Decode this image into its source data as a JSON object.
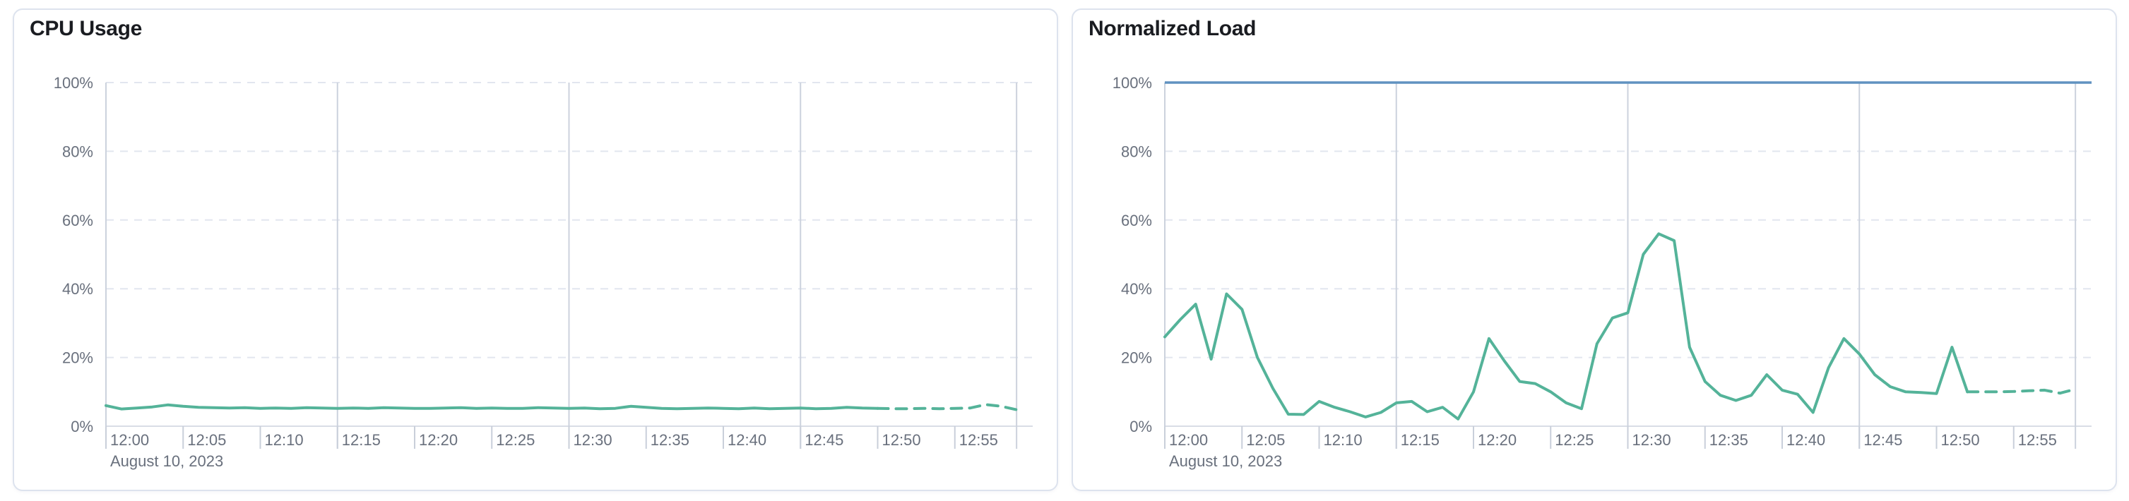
{
  "page": {
    "background": "#ffffff",
    "panel_border_color": "#dde3ee"
  },
  "chart_data": [
    {
      "type": "line",
      "title": "CPU Usage",
      "x_axis_date": "August 10, 2023",
      "x_tick_labels": [
        "12:00",
        "12:05",
        "12:10",
        "12:15",
        "12:20",
        "12:25",
        "12:30",
        "12:35",
        "12:40",
        "12:45",
        "12:50",
        "12:55"
      ],
      "x_tick_interval_minutes": 5,
      "x_gridline_minutes": [
        15,
        30,
        45
      ],
      "x_domain_minutes": [
        0,
        60
      ],
      "y_tick_labels": [
        "0%",
        "20%",
        "40%",
        "60%",
        "80%",
        "100%"
      ],
      "y_tick_values": [
        0,
        20,
        40,
        60,
        80,
        100
      ],
      "ylim": [
        0,
        100
      ],
      "grid": true,
      "legend": "none",
      "series": [
        {
          "name": "CPU Usage",
          "color": "#54B399",
          "x_start_minute": 0,
          "x_step_minutes": 1,
          "dashed_from_index": 50,
          "values": [
            6.0,
            5.0,
            5.3,
            5.6,
            6.2,
            5.8,
            5.5,
            5.4,
            5.3,
            5.4,
            5.2,
            5.3,
            5.2,
            5.4,
            5.3,
            5.2,
            5.3,
            5.2,
            5.4,
            5.3,
            5.2,
            5.2,
            5.3,
            5.4,
            5.2,
            5.3,
            5.2,
            5.2,
            5.4,
            5.3,
            5.2,
            5.3,
            5.1,
            5.2,
            5.8,
            5.5,
            5.2,
            5.1,
            5.2,
            5.3,
            5.2,
            5.1,
            5.3,
            5.1,
            5.2,
            5.3,
            5.1,
            5.2,
            5.5,
            5.3,
            5.2,
            5.1,
            5.1,
            5.2,
            5.1,
            5.2,
            5.3,
            6.3,
            5.8,
            4.8
          ]
        }
      ]
    },
    {
      "type": "line",
      "title": "Normalized Load",
      "x_axis_date": "August 10, 2023",
      "x_tick_labels": [
        "12:00",
        "12:05",
        "12:10",
        "12:15",
        "12:20",
        "12:25",
        "12:30",
        "12:35",
        "12:40",
        "12:45",
        "12:50",
        "12:55"
      ],
      "x_tick_interval_minutes": 5,
      "x_gridline_minutes": [
        15,
        30,
        45
      ],
      "x_domain_minutes": [
        0,
        60
      ],
      "y_tick_labels": [
        "0%",
        "20%",
        "40%",
        "60%",
        "80%",
        "100%"
      ],
      "y_tick_values": [
        0,
        20,
        40,
        60,
        80,
        100
      ],
      "ylim": [
        0,
        100
      ],
      "grid": true,
      "legend": "none",
      "reference_line": {
        "value": 100,
        "color": "#6092C0"
      },
      "series": [
        {
          "name": "Normalized Load",
          "color": "#54B399",
          "x_start_minute": 0,
          "x_step_minutes": 1,
          "dashed_from_index": 52,
          "values": [
            26,
            31,
            35.5,
            19.5,
            38.5,
            34,
            20,
            11,
            3.5,
            3.4,
            7.2,
            5.5,
            4.2,
            2.7,
            4,
            6.8,
            7.2,
            4.2,
            5.5,
            2.1,
            10,
            25.5,
            19,
            13,
            12.4,
            10,
            6.8,
            5.1,
            24,
            31.5,
            33,
            50,
            56,
            54,
            23,
            13,
            9,
            7.5,
            9,
            15,
            10.5,
            9.3,
            4,
            17,
            25.5,
            21,
            15,
            11.5,
            10,
            9.8,
            9.5,
            23,
            10,
            10,
            10,
            10.1,
            10.3,
            10.5,
            9.6,
            10.8
          ]
        }
      ]
    }
  ]
}
